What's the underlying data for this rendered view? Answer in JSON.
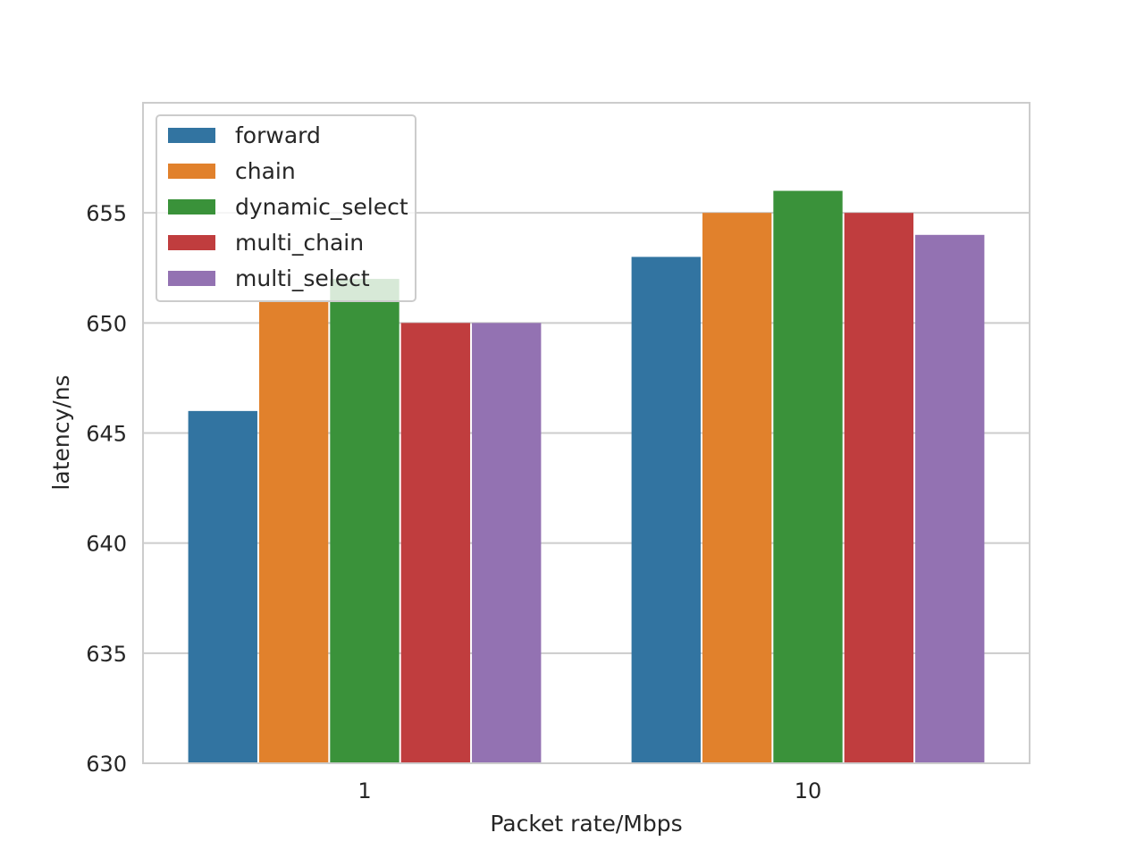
{
  "chart_data": {
    "type": "bar",
    "xlabel": "Packet rate/Mbps",
    "ylabel": "latency/ns",
    "categories": [
      "1",
      "10"
    ],
    "series": [
      {
        "name": "forward",
        "color": "#3274a1",
        "values": [
          646,
          653
        ]
      },
      {
        "name": "chain",
        "color": "#e1812c",
        "values": [
          651,
          655
        ]
      },
      {
        "name": "dynamic_select",
        "color": "#3a923a",
        "values": [
          652,
          656
        ]
      },
      {
        "name": "multi_chain",
        "color": "#c03d3e",
        "values": [
          650,
          655
        ]
      },
      {
        "name": "multi_select",
        "color": "#9372b2",
        "values": [
          650,
          654
        ]
      }
    ],
    "ylim": [
      630,
      660
    ],
    "yticks": [
      630,
      635,
      640,
      645,
      650,
      655
    ],
    "grid": true,
    "legend_position": "top-left"
  }
}
